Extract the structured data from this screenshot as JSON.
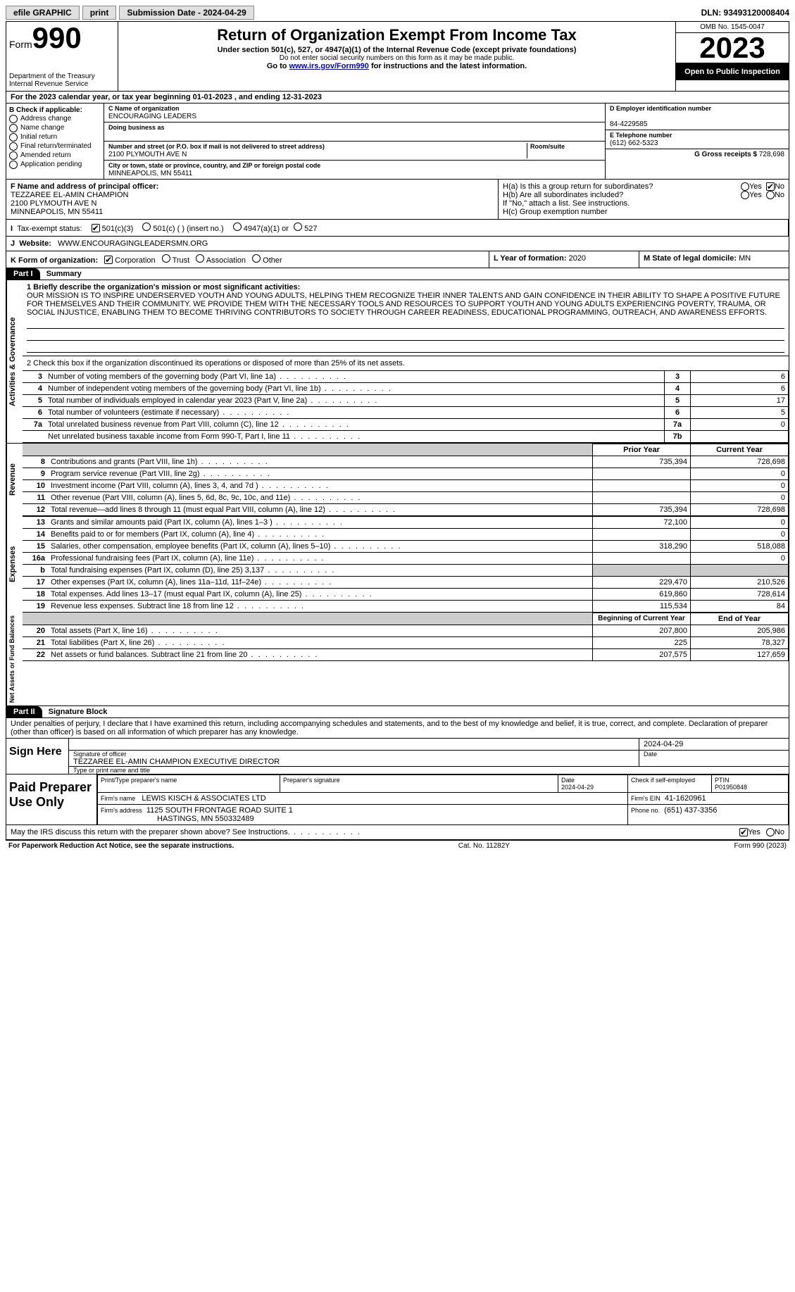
{
  "topbar": {
    "efile_label": "efile GRAPHIC",
    "print_label": "print",
    "submission_label": "Submission Date - 2024-04-29",
    "dln": "DLN: 93493120008404"
  },
  "header": {
    "form_label": "Form",
    "form_number": "990",
    "dept1": "Department of the Treasury",
    "dept2": "Internal Revenue Service",
    "title": "Return of Organization Exempt From Income Tax",
    "subtitle": "Under section 501(c), 527, or 4947(a)(1) of the Internal Revenue Code (except private foundations)",
    "ssn_note": "Do not enter social security numbers on this form as it may be made public.",
    "goto": "Go to ",
    "goto_link": "www.irs.gov/Form990",
    "goto_suffix": " for instructions and the latest information.",
    "omb": "OMB No. 1545-0047",
    "year": "2023",
    "open": "Open to Public Inspection"
  },
  "line_a": "For the 2023 calendar year, or tax year beginning 01-01-2023   , and ending 12-31-2023",
  "box_b": {
    "title": "B Check if applicable:",
    "opts": [
      "Address change",
      "Name change",
      "Initial return",
      "Final return/terminated",
      "Amended return",
      "Application pending"
    ]
  },
  "box_c": {
    "label_name": "C Name of organization",
    "name": "ENCOURAGING LEADERS",
    "dba_label": "Doing business as",
    "addr_label": "Number and street (or P.O. box if mail is not delivered to street address)",
    "room_label": "Room/suite",
    "addr": "2100 PLYMOUTH AVE N",
    "city_label": "City or town, state or province, country, and ZIP or foreign postal code",
    "city": "MINNEAPOLIS, MN  55411"
  },
  "box_d": {
    "label": "D Employer identification number",
    "value": "84-4229585"
  },
  "box_e": {
    "label": "E Telephone number",
    "value": "(612) 662-5323"
  },
  "box_g": {
    "label": "G Gross receipts $",
    "value": "728,698"
  },
  "box_f": {
    "label": "F  Name and address of principal officer:",
    "name": "TEZZAREE EL-AMIN CHAMPION",
    "addr1": "2100 PLYMOUTH AVE N",
    "addr2": "MINNEAPOLIS, MN  55411"
  },
  "box_h": {
    "ha": "H(a)  Is this a group return for subordinates?",
    "hb": "H(b)  Are all subordinates included?",
    "hb_note": "If \"No,\" attach a list. See instructions.",
    "hc": "H(c)  Group exemption number",
    "yes": "Yes",
    "no": "No"
  },
  "box_i": {
    "label": "Tax-exempt status:",
    "o1": "501(c)(3)",
    "o2": "501(c) (  ) (insert no.)",
    "o3": "4947(a)(1) or",
    "o4": "527"
  },
  "box_j": {
    "label": "Website:",
    "value": "WWW.ENCOURAGINGLEADERSMN.ORG"
  },
  "box_k": {
    "label": "K Form of organization:",
    "o1": "Corporation",
    "o2": "Trust",
    "o3": "Association",
    "o4": "Other"
  },
  "box_l": {
    "label": "L Year of formation:",
    "value": "2020"
  },
  "box_m": {
    "label": "M State of legal domicile:",
    "value": "MN"
  },
  "part1": {
    "tab": "Part I",
    "title": "Summary",
    "l1_label": "1  Briefly describe the organization's mission or most significant activities:",
    "mission": "OUR MISSION IS TO INSPIRE UNDERSERVED YOUTH AND YOUNG ADULTS, HELPING THEM RECOGNIZE THEIR INNER TALENTS AND GAIN CONFIDENCE IN THEIR ABILITY TO SHAPE A POSITIVE FUTURE FOR THEMSELVES AND THEIR COMMUNITY. WE PROVIDE THEM WITH THE NECESSARY TOOLS AND RESOURCES TO SUPPORT YOUTH AND YOUNG ADULTS EXPERIENCING POVERTY, TRAUMA, OR SOCIAL INJUSTICE, ENABLING THEM TO BECOME THRIVING CONTRIBUTORS TO SOCIETY THROUGH CAREER READINESS, EDUCATIONAL PROGRAMMING, OUTREACH, AND AWARENESS EFFORTS.",
    "l2": "2   Check this box      if the organization discontinued its operations or disposed of more than 25% of its net assets.",
    "rows_top": [
      {
        "n": "3",
        "t": "Number of voting members of the governing body (Part VI, line 1a)",
        "k": "3",
        "v": "6"
      },
      {
        "n": "4",
        "t": "Number of independent voting members of the governing body (Part VI, line 1b)",
        "k": "4",
        "v": "6"
      },
      {
        "n": "5",
        "t": "Total number of individuals employed in calendar year 2023 (Part V, line 2a)",
        "k": "5",
        "v": "17"
      },
      {
        "n": "6",
        "t": "Total number of volunteers (estimate if necessary)",
        "k": "6",
        "v": "5"
      },
      {
        "n": "7a",
        "t": "Total unrelated business revenue from Part VIII, column (C), line 12",
        "k": "7a",
        "v": "0"
      },
      {
        "n": "",
        "t": "Net unrelated business taxable income from Form 990-T, Part I, line 11",
        "k": "7b",
        "v": ""
      }
    ],
    "prior_label": "Prior Year",
    "current_label": "Current Year",
    "revenue_label": "Revenue",
    "expenses_label": "Expenses",
    "netassets_label": "Net Assets or Fund Balances",
    "activities_label": "Activities & Governance",
    "rows_rev": [
      {
        "n": "8",
        "t": "Contributions and grants (Part VIII, line 1h)",
        "p": "735,394",
        "c": "728,698"
      },
      {
        "n": "9",
        "t": "Program service revenue (Part VIII, line 2g)",
        "p": "",
        "c": "0"
      },
      {
        "n": "10",
        "t": "Investment income (Part VIII, column (A), lines 3, 4, and 7d )",
        "p": "",
        "c": "0"
      },
      {
        "n": "11",
        "t": "Other revenue (Part VIII, column (A), lines 5, 6d, 8c, 9c, 10c, and 11e)",
        "p": "",
        "c": "0"
      },
      {
        "n": "12",
        "t": "Total revenue—add lines 8 through 11 (must equal Part VIII, column (A), line 12)",
        "p": "735,394",
        "c": "728,698"
      }
    ],
    "rows_exp": [
      {
        "n": "13",
        "t": "Grants and similar amounts paid (Part IX, column (A), lines 1–3 )",
        "p": "72,100",
        "c": "0"
      },
      {
        "n": "14",
        "t": "Benefits paid to or for members (Part IX, column (A), line 4)",
        "p": "",
        "c": "0"
      },
      {
        "n": "15",
        "t": "Salaries, other compensation, employee benefits (Part IX, column (A), lines 5–10)",
        "p": "318,290",
        "c": "518,088"
      },
      {
        "n": "16a",
        "t": "Professional fundraising fees (Part IX, column (A), line 11e)",
        "p": "",
        "c": "0"
      },
      {
        "n": "b",
        "t": "Total fundraising expenses (Part IX, column (D), line 25) 3,137",
        "p": "SHADE",
        "c": "SHADE"
      },
      {
        "n": "17",
        "t": "Other expenses (Part IX, column (A), lines 11a–11d, 11f–24e)",
        "p": "229,470",
        "c": "210,526"
      },
      {
        "n": "18",
        "t": "Total expenses. Add lines 13–17 (must equal Part IX, column (A), line 25)",
        "p": "619,860",
        "c": "728,614"
      },
      {
        "n": "19",
        "t": "Revenue less expenses. Subtract line 18 from line 12",
        "p": "115,534",
        "c": "84"
      }
    ],
    "boy_label": "Beginning of Current Year",
    "eoy_label": "End of Year",
    "rows_net": [
      {
        "n": "20",
        "t": "Total assets (Part X, line 16)",
        "p": "207,800",
        "c": "205,986"
      },
      {
        "n": "21",
        "t": "Total liabilities (Part X, line 26)",
        "p": "225",
        "c": "78,327"
      },
      {
        "n": "22",
        "t": "Net assets or fund balances. Subtract line 21 from line 20",
        "p": "207,575",
        "c": "127,659"
      }
    ]
  },
  "part2": {
    "tab": "Part II",
    "title": "Signature Block",
    "decl": "Under penalties of perjury, I declare that I have examined this return, including accompanying schedules and statements, and to the best of my knowledge and belief, it is true, correct, and complete. Declaration of preparer (other than officer) is based on all information of which preparer has any knowledge.",
    "sign_here": "Sign Here",
    "sig_date": "2024-04-29",
    "sig_label": "Signature of officer",
    "sig_name": "TEZZAREE EL-AMIN CHAMPION  EXECUTIVE DIRECTOR",
    "sig_title_label": "Type or print name and title",
    "date_label": "Date",
    "paid": "Paid Preparer Use Only",
    "prep_name_label": "Print/Type preparer's name",
    "prep_sig_label": "Preparer's signature",
    "prep_date": "2024-04-29",
    "check_if": "Check      if self-employed",
    "ptin_label": "PTIN",
    "ptin": "P01950848",
    "firm_name_label": "Firm's name",
    "firm_name": "LEWIS KISCH & ASSOCIATES LTD",
    "firm_ein_label": "Firm's EIN",
    "firm_ein": "41-1620961",
    "firm_addr_label": "Firm's address",
    "firm_addr1": "1125 SOUTH FRONTAGE ROAD SUITE 1",
    "firm_addr2": "HASTINGS, MN  550332489",
    "phone_label": "Phone no.",
    "phone": "(651) 437-3356",
    "discuss": "May the IRS discuss this return with the preparer shown above? See Instructions.",
    "yes": "Yes",
    "no": "No"
  },
  "footer": {
    "left": "For Paperwork Reduction Act Notice, see the separate instructions.",
    "mid": "Cat. No. 11282Y",
    "right": "Form 990 (2023)"
  }
}
